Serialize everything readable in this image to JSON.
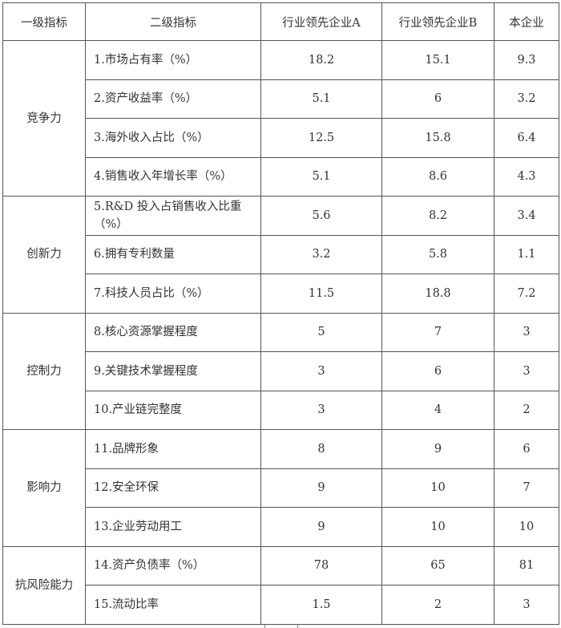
{
  "headers": [
    "一级指标",
    "二级指标",
    "行业领先企业A",
    "行业领先企业B",
    "本企业"
  ],
  "groups": [
    {
      "name": "竞争力",
      "rows": [
        {
          "indicator": "1.市场占有率（%）",
          "a": "18.2",
          "b": "15.1",
          "self": "9.3"
        },
        {
          "indicator": "2.资产收益率（%）",
          "a": "5.1",
          "b": "6",
          "self": "3.2"
        },
        {
          "indicator": "3.海外收入占比（%）",
          "a": "12.5",
          "b": "15.8",
          "self": "6.4"
        },
        {
          "indicator": "4.销售收入年增长率（%）",
          "a": "5.1",
          "b": "8.6",
          "self": "4.3"
        }
      ]
    },
    {
      "name": "创新力",
      "rows": [
        {
          "indicator": "5.R&D 投入占销售收入比重（%）",
          "a": "5.6",
          "b": "8.2",
          "self": "3.4"
        },
        {
          "indicator": "6.拥有专利数量",
          "a": "3.2",
          "b": "5.8",
          "self": "1.1"
        },
        {
          "indicator": "7.科技人员占比（%）",
          "a": "11.5",
          "b": "18.8",
          "self": "7.2"
        }
      ]
    },
    {
      "name": "控制力",
      "rows": [
        {
          "indicator": "8.核心资源掌握程度",
          "a": "5",
          "b": "7",
          "self": "3"
        },
        {
          "indicator": "9.关键技术掌握程度",
          "a": "3",
          "b": "6",
          "self": "3"
        },
        {
          "indicator": "10.产业链完整度",
          "a": "3",
          "b": "4",
          "self": "2"
        }
      ]
    },
    {
      "name": "影响力",
      "rows": [
        {
          "indicator": "11.品牌形象",
          "a": "8",
          "b": "9",
          "self": "6"
        },
        {
          "indicator": "12.安全环保",
          "a": "9",
          "b": "10",
          "self": "7"
        },
        {
          "indicator": "13.企业劳动用工",
          "a": "9",
          "b": "10",
          "self": "10"
        }
      ]
    },
    {
      "name": "抗风险能力",
      "rows": [
        {
          "indicator": "14.资产负债率（%）",
          "a": "78",
          "b": "65",
          "self": "81"
        },
        {
          "indicator": "15.流动比率",
          "a": "1.5",
          "b": "2",
          "self": "3"
        }
      ]
    }
  ]
}
